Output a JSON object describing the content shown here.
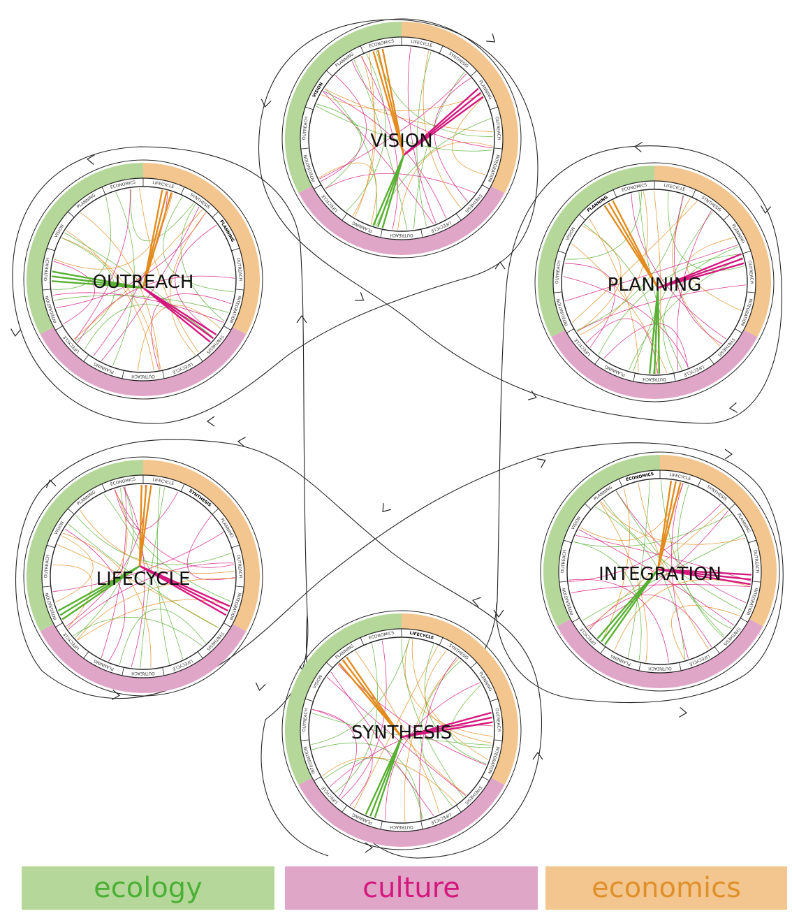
{
  "categories": [
    {
      "key": "ecology",
      "label": "ecology",
      "fill": "#b5d89a",
      "text": "#4caf36",
      "line": "#58b032"
    },
    {
      "key": "culture",
      "label": "culture",
      "fill": "#e0a6c8",
      "text": "#d4187e",
      "line": "#d4187e"
    },
    {
      "key": "economics",
      "label": "economics",
      "fill": "#f2c68e",
      "text": "#e0902a",
      "line": "#e38b1e"
    }
  ],
  "ring_labels": [
    "VISION",
    "PLANNING",
    "ECONOMICS",
    "LIFECYCLE",
    "SYNTHESIS",
    "PLANNING",
    "OUTREACH",
    "INTEGRATION",
    "SYNTHESIS",
    "LIFECYCLE",
    "OUTREACH",
    "PLANNING",
    "LIFECYCLE",
    "INTEGRATION",
    "OUTREACH"
  ],
  "hubs": [
    {
      "id": "vision",
      "title": "VISION"
    },
    {
      "id": "planning",
      "title": "PLANNING"
    },
    {
      "id": "integration",
      "title": "INTEGRATION"
    },
    {
      "id": "synthesis",
      "title": "SYNTHESIS"
    },
    {
      "id": "lifecycle",
      "title": "LIFECYCLE"
    },
    {
      "id": "outreach",
      "title": "OUTREACH"
    }
  ],
  "legend": {
    "ecology": "ecology",
    "culture": "culture",
    "economics": "economics"
  }
}
